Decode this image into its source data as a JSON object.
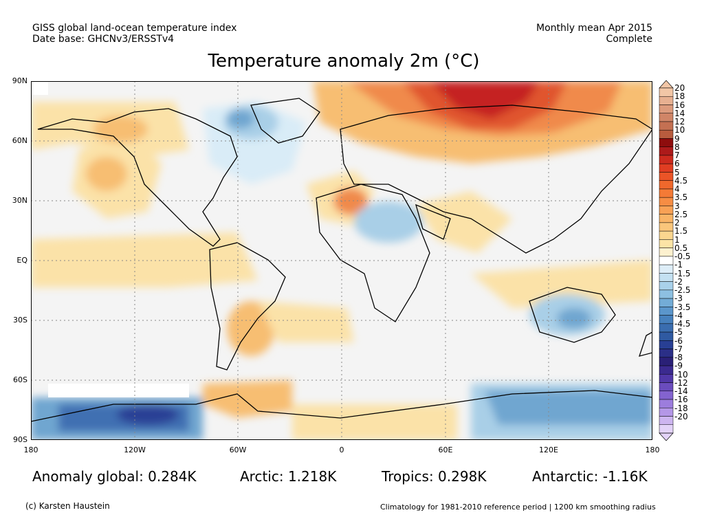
{
  "header": {
    "line1": "GISS global land-ocean temperature index",
    "line2": "Date base: GHCNv3/ERSSTv4",
    "right1": "Monthly mean Apr 2015",
    "right2": "Complete"
  },
  "title": "Temperature anomaly 2m (°C)",
  "map": {
    "lat_labels": [
      "90N",
      "60N",
      "30N",
      "EQ",
      "30S",
      "60S",
      "90S"
    ],
    "lon_labels": [
      "180",
      "120W",
      "60W",
      "0",
      "60E",
      "120E",
      "180"
    ],
    "colors": {
      "ocean_neutral": "#f4f4f4",
      "warm_1": "#fbe2a8",
      "warm_2": "#f7be72",
      "warm_3": "#f08a4b",
      "warm_4": "#e0542e",
      "warm_5": "#c52420",
      "cool_1": "#d9ecf7",
      "cool_2": "#a9cfe7",
      "cool_3": "#6fa6d0",
      "cool_4": "#3f6fb2",
      "cool_5": "#2a3f95"
    }
  },
  "colorbar": {
    "labels": [
      "20",
      "18",
      "16",
      "14",
      "12",
      "10",
      "9",
      "8",
      "7",
      "6",
      "5",
      "4.5",
      "4",
      "3.5",
      "3",
      "2.5",
      "2",
      "1.5",
      "1",
      "0.5",
      "-0.5",
      "-1",
      "-1.5",
      "-2",
      "-2.5",
      "-3",
      "-3.5",
      "-4",
      "-4.5",
      "-5",
      "-6",
      "-7",
      "-8",
      "-9",
      "-10",
      "-12",
      "-14",
      "-16",
      "-18",
      "-20"
    ],
    "colors": [
      "#f2c6a6",
      "#e7b091",
      "#dc9b7d",
      "#d08567",
      "#c47052",
      "#b85c3e",
      "#8e0d0d",
      "#ad1a1a",
      "#cc2a1e",
      "#e03d22",
      "#eb5427",
      "#f0682c",
      "#f47a36",
      "#f68d44",
      "#f8a155",
      "#f9b466",
      "#fac67b",
      "#fbd68f",
      "#fce4a6",
      "#fdf1cf",
      "#ffffff",
      "#deeef8",
      "#c4e1f2",
      "#a9d1ea",
      "#8dc0e1",
      "#73acd6",
      "#5b96cb",
      "#4781bd",
      "#3a6daf",
      "#2f5aa2",
      "#283f94",
      "#2b2f87",
      "#2a2077",
      "#3b2a8f",
      "#5138a8",
      "#6a4cbd",
      "#8363cf",
      "#9c7ddd",
      "#b497e7",
      "#cdb5f0",
      "#e3d3f8"
    ]
  },
  "stats": {
    "global": "Anomaly global: 0.284K",
    "arctic": "Arctic: 1.218K",
    "tropics": "Tropics: 0.298K",
    "antarctic": "Antarctic: -1.16K"
  },
  "footer": {
    "credit": "(c) Karsten Haustein",
    "note": "Climatology for 1981-2010 reference period | 1200 km smoothing radius"
  }
}
